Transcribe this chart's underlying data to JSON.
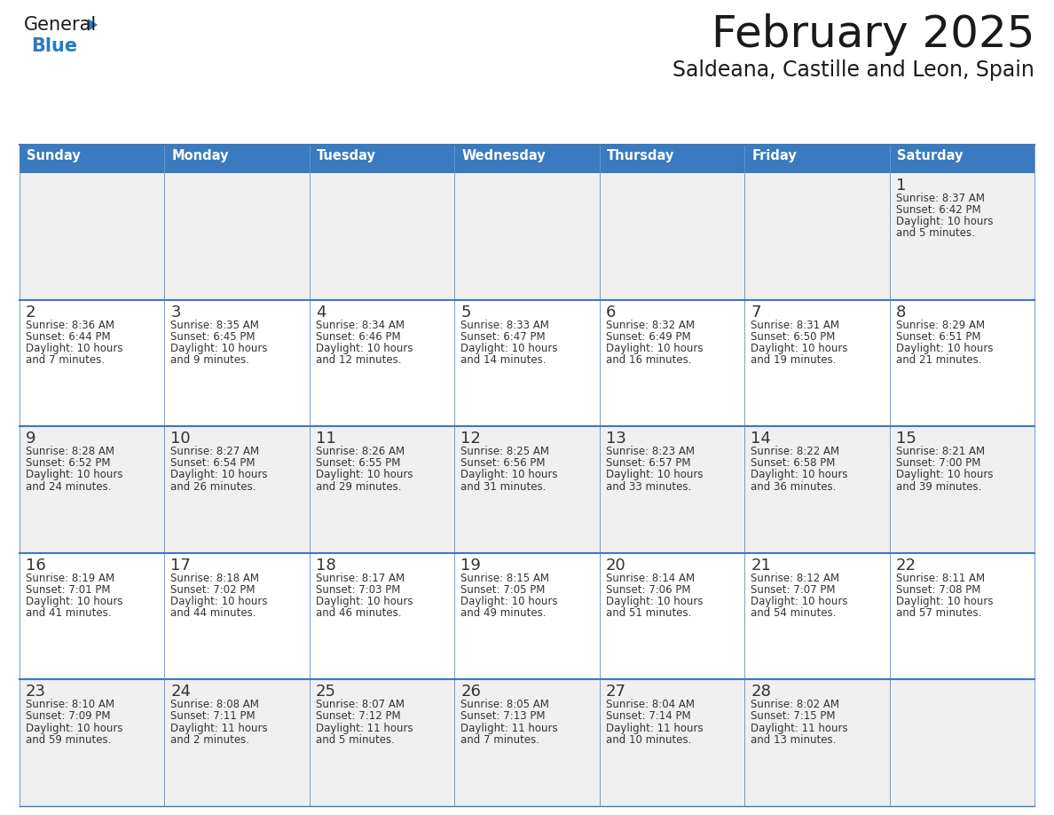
{
  "title": "February 2025",
  "subtitle": "Saldeana, Castille and Leon, Spain",
  "days_of_week": [
    "Sunday",
    "Monday",
    "Tuesday",
    "Wednesday",
    "Thursday",
    "Friday",
    "Saturday"
  ],
  "header_bg": "#3a7abf",
  "header_text": "#ffffff",
  "row_bg_odd": "#f0f0f0",
  "row_bg_even": "#ffffff",
  "cell_border_color": "#3a7abf",
  "day_number_color": "#333333",
  "info_text_color": "#333333",
  "calendar_data": [
    {
      "day": 1,
      "col": 6,
      "row": 0,
      "sunrise": "8:37 AM",
      "sunset": "6:42 PM",
      "daylight": "10 hours and 5 minutes."
    },
    {
      "day": 2,
      "col": 0,
      "row": 1,
      "sunrise": "8:36 AM",
      "sunset": "6:44 PM",
      "daylight": "10 hours and 7 minutes."
    },
    {
      "day": 3,
      "col": 1,
      "row": 1,
      "sunrise": "8:35 AM",
      "sunset": "6:45 PM",
      "daylight": "10 hours and 9 minutes."
    },
    {
      "day": 4,
      "col": 2,
      "row": 1,
      "sunrise": "8:34 AM",
      "sunset": "6:46 PM",
      "daylight": "10 hours and 12 minutes."
    },
    {
      "day": 5,
      "col": 3,
      "row": 1,
      "sunrise": "8:33 AM",
      "sunset": "6:47 PM",
      "daylight": "10 hours and 14 minutes."
    },
    {
      "day": 6,
      "col": 4,
      "row": 1,
      "sunrise": "8:32 AM",
      "sunset": "6:49 PM",
      "daylight": "10 hours and 16 minutes."
    },
    {
      "day": 7,
      "col": 5,
      "row": 1,
      "sunrise": "8:31 AM",
      "sunset": "6:50 PM",
      "daylight": "10 hours and 19 minutes."
    },
    {
      "day": 8,
      "col": 6,
      "row": 1,
      "sunrise": "8:29 AM",
      "sunset": "6:51 PM",
      "daylight": "10 hours and 21 minutes."
    },
    {
      "day": 9,
      "col": 0,
      "row": 2,
      "sunrise": "8:28 AM",
      "sunset": "6:52 PM",
      "daylight": "10 hours and 24 minutes."
    },
    {
      "day": 10,
      "col": 1,
      "row": 2,
      "sunrise": "8:27 AM",
      "sunset": "6:54 PM",
      "daylight": "10 hours and 26 minutes."
    },
    {
      "day": 11,
      "col": 2,
      "row": 2,
      "sunrise": "8:26 AM",
      "sunset": "6:55 PM",
      "daylight": "10 hours and 29 minutes."
    },
    {
      "day": 12,
      "col": 3,
      "row": 2,
      "sunrise": "8:25 AM",
      "sunset": "6:56 PM",
      "daylight": "10 hours and 31 minutes."
    },
    {
      "day": 13,
      "col": 4,
      "row": 2,
      "sunrise": "8:23 AM",
      "sunset": "6:57 PM",
      "daylight": "10 hours and 33 minutes."
    },
    {
      "day": 14,
      "col": 5,
      "row": 2,
      "sunrise": "8:22 AM",
      "sunset": "6:58 PM",
      "daylight": "10 hours and 36 minutes."
    },
    {
      "day": 15,
      "col": 6,
      "row": 2,
      "sunrise": "8:21 AM",
      "sunset": "7:00 PM",
      "daylight": "10 hours and 39 minutes."
    },
    {
      "day": 16,
      "col": 0,
      "row": 3,
      "sunrise": "8:19 AM",
      "sunset": "7:01 PM",
      "daylight": "10 hours and 41 minutes."
    },
    {
      "day": 17,
      "col": 1,
      "row": 3,
      "sunrise": "8:18 AM",
      "sunset": "7:02 PM",
      "daylight": "10 hours and 44 minutes."
    },
    {
      "day": 18,
      "col": 2,
      "row": 3,
      "sunrise": "8:17 AM",
      "sunset": "7:03 PM",
      "daylight": "10 hours and 46 minutes."
    },
    {
      "day": 19,
      "col": 3,
      "row": 3,
      "sunrise": "8:15 AM",
      "sunset": "7:05 PM",
      "daylight": "10 hours and 49 minutes."
    },
    {
      "day": 20,
      "col": 4,
      "row": 3,
      "sunrise": "8:14 AM",
      "sunset": "7:06 PM",
      "daylight": "10 hours and 51 minutes."
    },
    {
      "day": 21,
      "col": 5,
      "row": 3,
      "sunrise": "8:12 AM",
      "sunset": "7:07 PM",
      "daylight": "10 hours and 54 minutes."
    },
    {
      "day": 22,
      "col": 6,
      "row": 3,
      "sunrise": "8:11 AM",
      "sunset": "7:08 PM",
      "daylight": "10 hours and 57 minutes."
    },
    {
      "day": 23,
      "col": 0,
      "row": 4,
      "sunrise": "8:10 AM",
      "sunset": "7:09 PM",
      "daylight": "10 hours and 59 minutes."
    },
    {
      "day": 24,
      "col": 1,
      "row": 4,
      "sunrise": "8:08 AM",
      "sunset": "7:11 PM",
      "daylight": "11 hours and 2 minutes."
    },
    {
      "day": 25,
      "col": 2,
      "row": 4,
      "sunrise": "8:07 AM",
      "sunset": "7:12 PM",
      "daylight": "11 hours and 5 minutes."
    },
    {
      "day": 26,
      "col": 3,
      "row": 4,
      "sunrise": "8:05 AM",
      "sunset": "7:13 PM",
      "daylight": "11 hours and 7 minutes."
    },
    {
      "day": 27,
      "col": 4,
      "row": 4,
      "sunrise": "8:04 AM",
      "sunset": "7:14 PM",
      "daylight": "11 hours and 10 minutes."
    },
    {
      "day": 28,
      "col": 5,
      "row": 4,
      "sunrise": "8:02 AM",
      "sunset": "7:15 PM",
      "daylight": "11 hours and 13 minutes."
    }
  ],
  "num_rows": 5,
  "num_cols": 7,
  "logo_text_general": "General",
  "logo_text_blue": "Blue",
  "logo_color_general": "#1a1a1a",
  "logo_color_blue": "#2a7abf",
  "logo_triangle_color": "#2a7abf",
  "fig_width": 11.88,
  "fig_height": 9.18,
  "dpi": 100
}
